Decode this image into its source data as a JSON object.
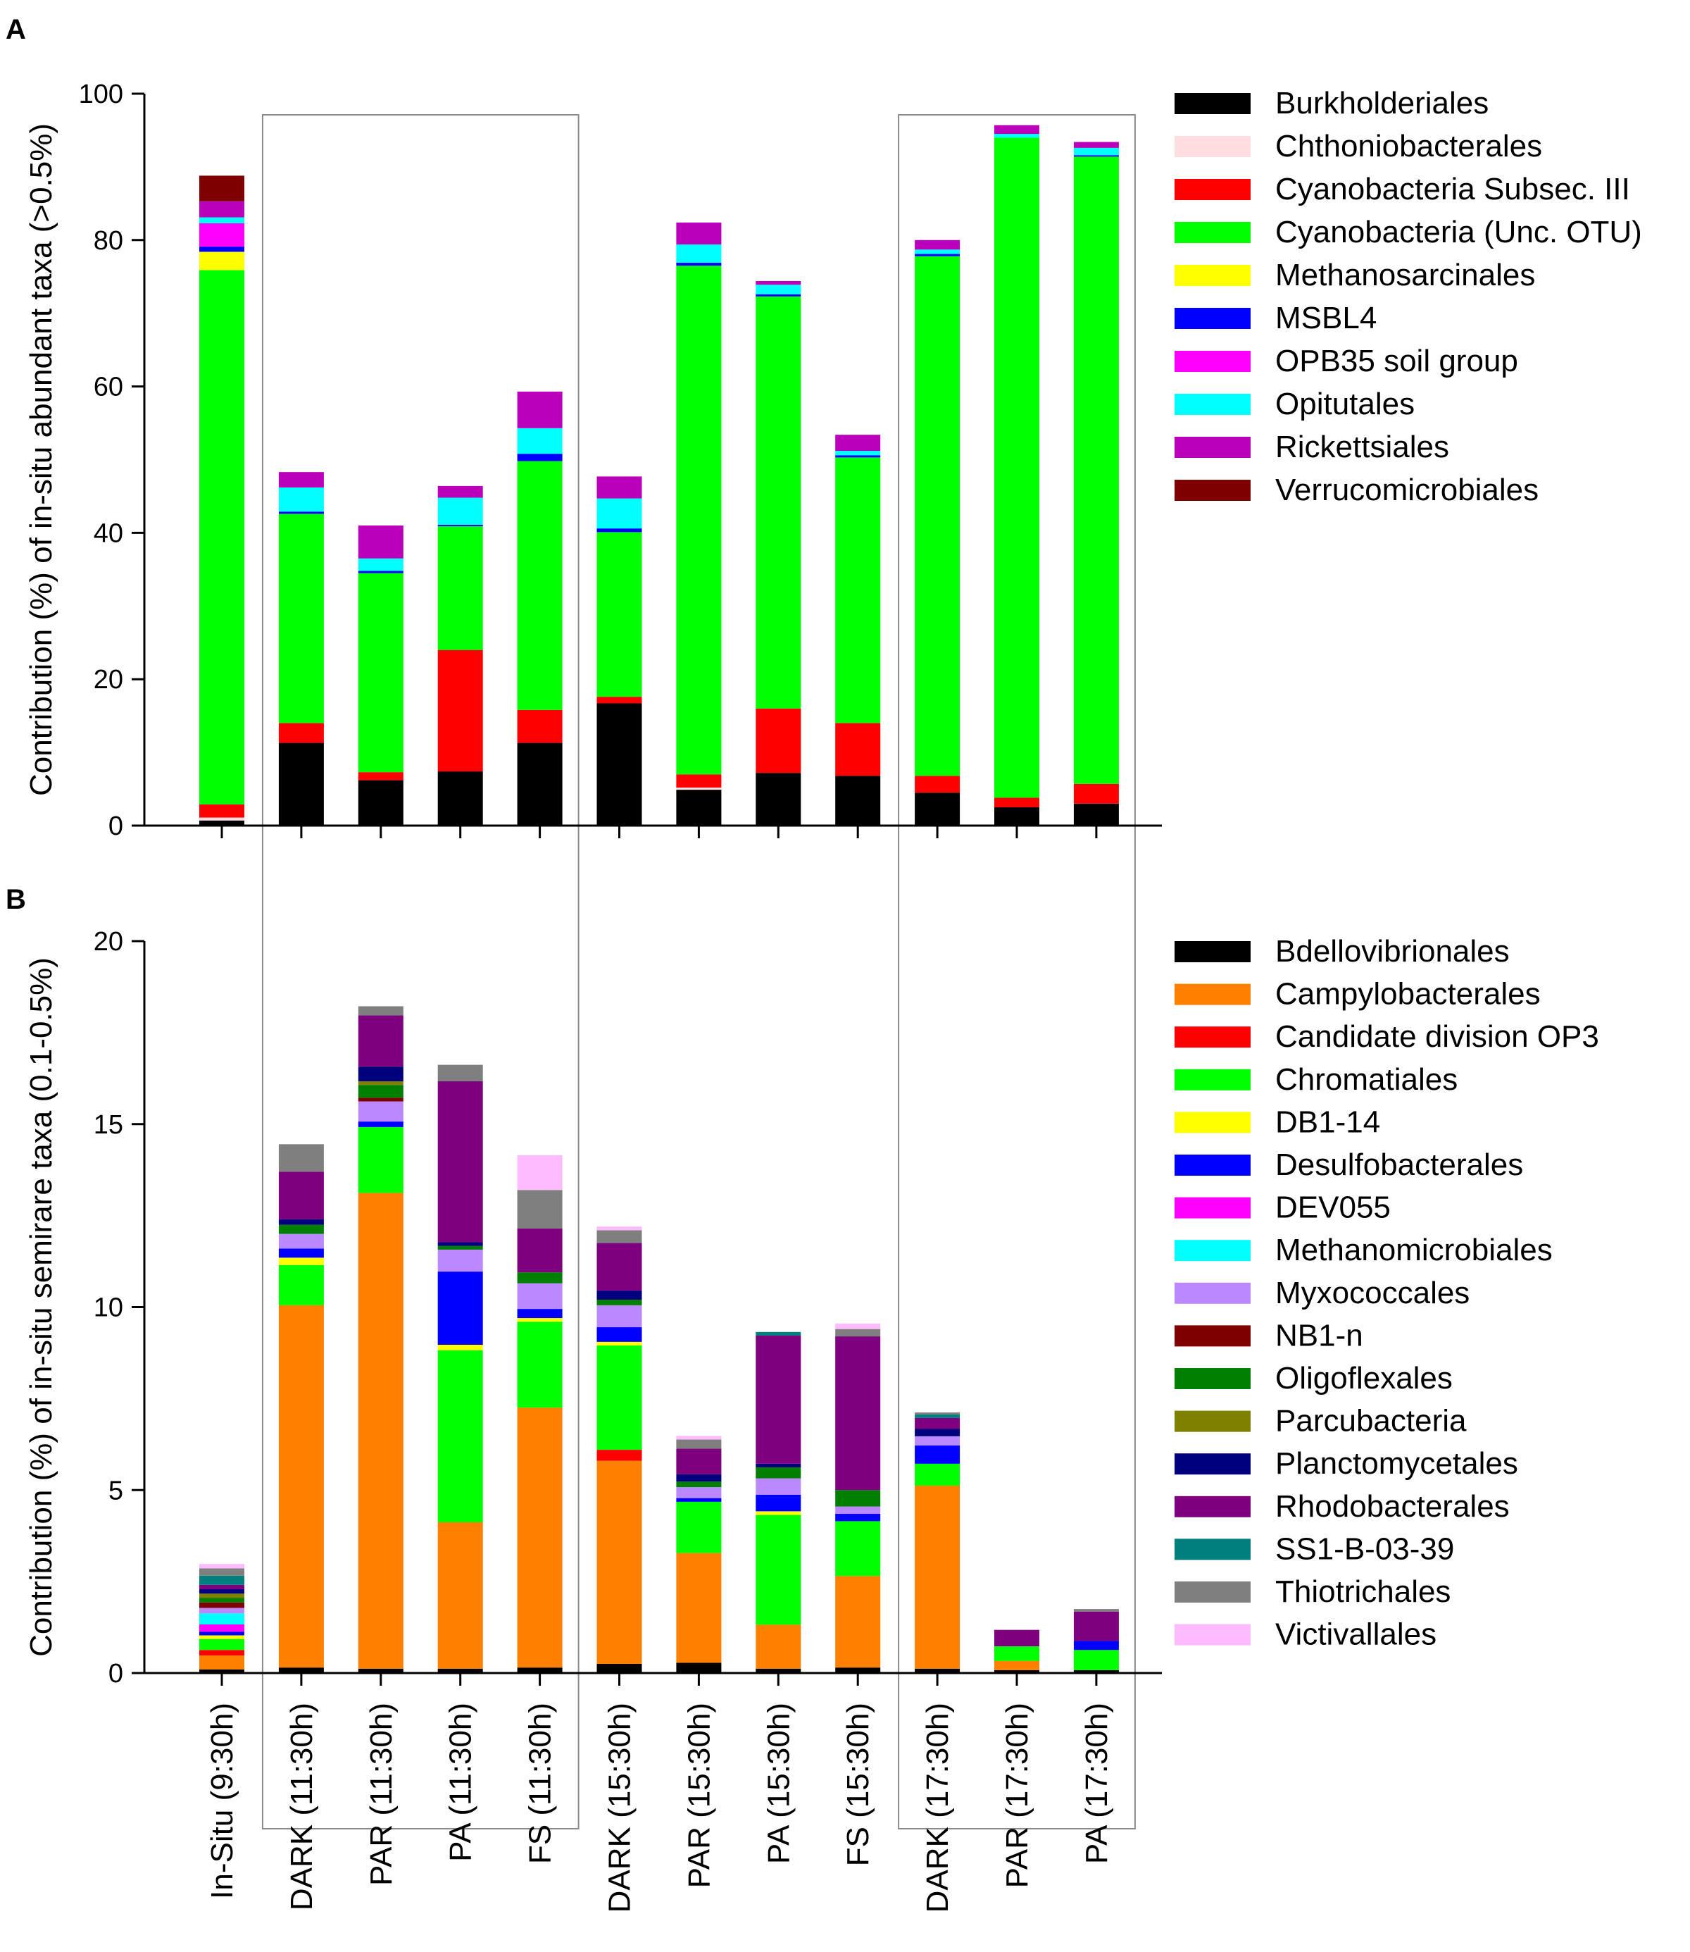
{
  "chart_data": [
    {
      "panel": "A",
      "type": "bar",
      "stacked": true,
      "ylabel": "Contribution (%) of in-situ abundant taxa (>0.5%)",
      "ylim": [
        0,
        100
      ],
      "yticks": [
        0,
        20,
        40,
        60,
        80,
        100
      ],
      "categories": [
        "In-Situ (9:30h)",
        "DARK (11:30h)",
        "PAR (11:30h)",
        "PA (11:30h)",
        "FS (11:30h)",
        "DARK (15:30h)",
        "PAR (15:30h)",
        "PA (15:30h)",
        "FS (15:30h)",
        "DARK (17:30h)",
        "PAR  (17:30h)",
        "PA (17:30h)"
      ],
      "legend_position": "right",
      "series": [
        {
          "name": "Burkholderiales",
          "color": "#000000",
          "values": [
            0.7,
            11.3,
            6.2,
            7.4,
            11.3,
            16.7,
            4.9,
            7.2,
            6.8,
            4.5,
            2.5,
            3.0
          ]
        },
        {
          "name": "Chthoniobacterales",
          "color": "#FFDDE0",
          "values": [
            0.4,
            0,
            0,
            0,
            0,
            0,
            0.3,
            0,
            0,
            0,
            0,
            0
          ]
        },
        {
          "name": "Cyanobacteria Subsec. III",
          "color": "#FF0000",
          "values": [
            1.8,
            2.7,
            1.1,
            16.6,
            4.5,
            0.9,
            1.8,
            8.8,
            7.2,
            2.3,
            1.3,
            2.7
          ]
        },
        {
          "name": "Cyanobacteria (Unc. OTU)",
          "color": "#00FF00",
          "values": [
            73.0,
            28.6,
            27.2,
            16.9,
            34.0,
            22.5,
            69.5,
            56.3,
            36.3,
            71.0,
            90.2,
            85.7
          ]
        },
        {
          "name": "Methanosarcinales",
          "color": "#FFFF00",
          "values": [
            2.5,
            0,
            0,
            0,
            0,
            0,
            0,
            0,
            0,
            0,
            0,
            0
          ]
        },
        {
          "name": "MSBL4",
          "color": "#0000FF",
          "values": [
            0.7,
            0.3,
            0.3,
            0.2,
            1.0,
            0.5,
            0.4,
            0.3,
            0.3,
            0.3,
            0,
            0.2
          ]
        },
        {
          "name": "OPB35 soil group",
          "color": "#FF00FF",
          "values": [
            3.2,
            0,
            0,
            0,
            0,
            0,
            0,
            0,
            0,
            0,
            0,
            0
          ]
        },
        {
          "name": "Opitutales",
          "color": "#00FFFF",
          "values": [
            0.8,
            3.3,
            1.7,
            3.7,
            3.5,
            4.1,
            2.5,
            1.3,
            0.6,
            0.6,
            0.5,
            1.0
          ]
        },
        {
          "name": "Rickettsiales",
          "color": "#BB00BB",
          "values": [
            2.2,
            2.1,
            4.5,
            1.6,
            5.0,
            3.0,
            3.0,
            0.5,
            2.2,
            1.3,
            1.2,
            0.8
          ]
        },
        {
          "name": "Verrucomicrobiales",
          "color": "#7F0000",
          "values": [
            3.5,
            0,
            0,
            0,
            0,
            0,
            0,
            0,
            0,
            0,
            0,
            0
          ]
        }
      ]
    },
    {
      "panel": "B",
      "type": "bar",
      "stacked": true,
      "ylabel": "Contribution (%) of in-situ semirare taxa (0.1-0.5%)",
      "ylim": [
        0,
        20
      ],
      "yticks": [
        0,
        5,
        10,
        15,
        20
      ],
      "categories": [
        "In-Situ (9:30h)",
        "DARK (11:30h)",
        "PAR (11:30h)",
        "PA (11:30h)",
        "FS (11:30h)",
        "DARK (15:30h)",
        "PAR (15:30h)",
        "PA (15:30h)",
        "FS (15:30h)",
        "DARK (17:30h)",
        "PAR  (17:30h)",
        "PA (17:30h)"
      ],
      "legend_position": "right",
      "series": [
        {
          "name": "Bdellovibrionales",
          "color": "#000000",
          "values": [
            0.1,
            0.15,
            0.12,
            0.12,
            0.15,
            0.25,
            0.28,
            0.12,
            0.15,
            0.12,
            0.08,
            0.08
          ]
        },
        {
          "name": "Campylobacterales",
          "color": "#FF8000",
          "values": [
            0.38,
            9.9,
            13.0,
            4.0,
            7.1,
            5.55,
            3.0,
            1.2,
            2.5,
            5.0,
            0.25,
            0
          ]
        },
        {
          "name": "Candidate division OP3",
          "color": "#FF0000",
          "values": [
            0.15,
            0,
            0,
            0,
            0,
            0.3,
            0,
            0,
            0,
            0,
            0,
            0
          ]
        },
        {
          "name": "Chromatiales",
          "color": "#00FF00",
          "values": [
            0.3,
            1.1,
            1.8,
            4.7,
            2.35,
            2.85,
            1.4,
            3.0,
            1.5,
            0.6,
            0.4,
            0.55
          ]
        },
        {
          "name": "DB1-14",
          "color": "#FFFF00",
          "values": [
            0.1,
            0.2,
            0,
            0.15,
            0.1,
            0.1,
            0,
            0.1,
            0,
            0,
            0,
            0
          ]
        },
        {
          "name": "Desulfobacterales",
          "color": "#0000FF",
          "values": [
            0.1,
            0.25,
            0.15,
            2.0,
            0.25,
            0.4,
            0.1,
            0.45,
            0.2,
            0.5,
            0,
            0.25
          ]
        },
        {
          "name": "DEV055",
          "color": "#FF00FF",
          "values": [
            0.2,
            0,
            0,
            0,
            0,
            0,
            0,
            0,
            0,
            0,
            0,
            0
          ]
        },
        {
          "name": "Methanomicrobiales",
          "color": "#00FFFF",
          "values": [
            0.3,
            0,
            0,
            0,
            0,
            0,
            0,
            0,
            0,
            0,
            0,
            0
          ]
        },
        {
          "name": "Myxococcales",
          "color": "#BB88FF",
          "values": [
            0.15,
            0.4,
            0.55,
            0.6,
            0.7,
            0.6,
            0.3,
            0.45,
            0.2,
            0.25,
            0,
            0
          ]
        },
        {
          "name": "NB1-n",
          "color": "#7F0000",
          "values": [
            0.15,
            0,
            0.1,
            0,
            0,
            0,
            0,
            0,
            0,
            0,
            0,
            0
          ]
        },
        {
          "name": "Oligoflexales",
          "color": "#007F00",
          "values": [
            0.12,
            0.25,
            0.35,
            0.1,
            0.3,
            0.15,
            0.15,
            0.3,
            0.45,
            0,
            0,
            0
          ]
        },
        {
          "name": "Parcubacteria",
          "color": "#7F7F00",
          "values": [
            0.12,
            0,
            0.1,
            0,
            0,
            0,
            0,
            0,
            0,
            0,
            0,
            0
          ]
        },
        {
          "name": "Planctomycetales",
          "color": "#00007F",
          "values": [
            0.12,
            0.15,
            0.4,
            0.1,
            0,
            0.25,
            0.2,
            0.1,
            0,
            0.2,
            0,
            0
          ]
        },
        {
          "name": "Rhodobacterales",
          "color": "#7F007F",
          "values": [
            0.12,
            1.3,
            1.4,
            4.4,
            1.2,
            1.3,
            0.7,
            3.5,
            4.2,
            0.3,
            0.45,
            0.8
          ]
        },
        {
          "name": "SS1-B-03-39",
          "color": "#007F7F",
          "values": [
            0.25,
            0,
            0,
            0,
            0,
            0,
            0,
            0.1,
            0,
            0.1,
            0,
            0
          ]
        },
        {
          "name": "Thiotrichales",
          "color": "#7F7F7F",
          "values": [
            0.2,
            0.75,
            0.25,
            0.45,
            1.05,
            0.35,
            0.25,
            0,
            0.2,
            0.05,
            0,
            0.07
          ]
        },
        {
          "name": "Victivallales",
          "color": "#FFBBFF",
          "values": [
            0.12,
            0,
            0,
            0,
            0.95,
            0.1,
            0.1,
            0,
            0.15,
            0,
            0,
            0
          ]
        }
      ]
    }
  ],
  "panel_labels": [
    "A",
    "B"
  ],
  "group_boxes": [
    {
      "from_category": 1,
      "to_category": 4
    },
    {
      "from_category": 9,
      "to_category": 11
    }
  ]
}
